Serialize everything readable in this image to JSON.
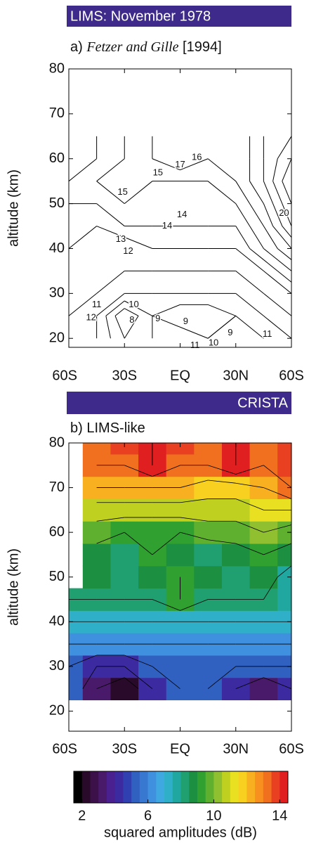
{
  "chart_data": [
    {
      "type": "contour",
      "header": "LIMS: November 1978",
      "panel_label": "a)",
      "citation_authors": "Fetzer and Gille",
      "citation_year": "[1994]",
      "ylabel": "altitude (km)",
      "x": [
        -60,
        -45,
        -30,
        -15,
        0,
        15,
        30,
        45,
        60
      ],
      "y": [
        20,
        25,
        30,
        35,
        40,
        45,
        50,
        55,
        60,
        65
      ],
      "z": [
        [
          12,
          11,
          9,
          10,
          11,
          10,
          9,
          10,
          11
        ],
        [
          12,
          11,
          8,
          10,
          9,
          9,
          10,
          11,
          12
        ],
        [
          12,
          12,
          11,
          11,
          11,
          11,
          11,
          12,
          13
        ],
        [
          12,
          12,
          12,
          12,
          12,
          12,
          12,
          13,
          15
        ],
        [
          13,
          12,
          12,
          13,
          13,
          13,
          13,
          15,
          17
        ],
        [
          13,
          13,
          14,
          14,
          14,
          14,
          14,
          16,
          19
        ],
        [
          14,
          14,
          15,
          14,
          14,
          14,
          15,
          17,
          20
        ],
        [
          14,
          15,
          15,
          15,
          15,
          15,
          16,
          18,
          21
        ],
        [
          13,
          14,
          15,
          16,
          17,
          16,
          16,
          18,
          20
        ],
        [
          13,
          14,
          15,
          16,
          16,
          16,
          16,
          18,
          19
        ]
      ],
      "levels": [
        8,
        9,
        10,
        11,
        12,
        13,
        14,
        15,
        16,
        17,
        18,
        19,
        20,
        21
      ],
      "line_color": "#000000",
      "contour_labels": [
        {
          "value": 16,
          "x": 9,
          "y": 60.3
        },
        {
          "value": 17,
          "x": 0,
          "y": 58.6
        },
        {
          "value": 15,
          "x": -12,
          "y": 56.8
        },
        {
          "value": 15,
          "x": -31,
          "y": 52.5
        },
        {
          "value": 14,
          "x": 1,
          "y": 47.5
        },
        {
          "value": 14,
          "x": -7,
          "y": 45
        },
        {
          "value": 20,
          "x": 56,
          "y": 47.8
        },
        {
          "value": 13,
          "x": -32,
          "y": 42
        },
        {
          "value": 12,
          "x": -28,
          "y": 39.4
        },
        {
          "value": 11,
          "x": -45,
          "y": 27.5
        },
        {
          "value": 12,
          "x": -48,
          "y": 24.6
        },
        {
          "value": 10,
          "x": -25,
          "y": 27.5
        },
        {
          "value": 8,
          "x": -26,
          "y": 24
        },
        {
          "value": 9,
          "x": -12,
          "y": 24.3
        },
        {
          "value": 9,
          "x": 3,
          "y": 23.7
        },
        {
          "value": 9,
          "x": 27,
          "y": 21.2
        },
        {
          "value": 10,
          "x": 18,
          "y": 18.9
        },
        {
          "value": 11,
          "x": 8,
          "y": 18.4
        },
        {
          "value": 11,
          "x": 47,
          "y": 20.9
        }
      ],
      "xlim": [
        -60,
        60
      ],
      "ylim": [
        18,
        80
      ],
      "xticks": [
        {
          "value": -60,
          "label": "60S"
        },
        {
          "value": -30,
          "label": "30S"
        },
        {
          "value": 0,
          "label": "EQ"
        },
        {
          "value": 30,
          "label": "30N"
        },
        {
          "value": 60,
          "label": "60S"
        }
      ],
      "yticks": [
        20,
        30,
        40,
        50,
        60,
        70,
        80
      ]
    },
    {
      "type": "filled_contour",
      "header": "CRISTA",
      "panel_label": "b)",
      "subtitle": "LIMS-like",
      "ylabel": "altitude (km)",
      "x": [
        -60,
        -45,
        -30,
        -15,
        0,
        15,
        30,
        45,
        60
      ],
      "y": [
        25,
        30,
        35,
        40,
        45,
        50,
        55,
        60,
        65,
        70,
        75,
        80
      ],
      "z": [
        [
          5,
          3,
          2,
          4,
          5,
          5,
          4,
          3,
          4
        ],
        [
          5,
          4,
          4,
          5,
          5,
          5,
          5,
          5,
          5
        ],
        [
          6,
          6,
          6,
          6,
          6,
          6,
          6,
          6,
          6
        ],
        [
          7,
          7,
          7,
          7,
          7,
          7,
          7,
          7,
          7
        ],
        [
          8,
          8,
          8,
          8,
          9,
          8,
          8,
          8,
          7.5
        ],
        [
          null,
          8.5,
          8,
          8.5,
          9,
          8.5,
          8,
          8.5,
          7.5
        ],
        [
          null,
          8.5,
          8,
          9,
          8.5,
          8,
          8.5,
          9,
          8.5
        ],
        [
          null,
          9.5,
          9,
          9,
          9,
          9.5,
          9.5,
          10,
          9.5
        ],
        [
          null,
          10.5,
          10.5,
          10.5,
          10.5,
          10.5,
          10.5,
          11,
          11
        ],
        [
          null,
          12,
          12,
          12,
          12,
          11.5,
          11.5,
          12,
          13
        ],
        [
          null,
          13,
          13,
          14,
          13,
          13,
          14,
          13,
          13.5
        ],
        [
          null,
          13,
          13.5,
          14,
          13.5,
          13,
          14,
          13,
          13.5
        ]
      ],
      "levels": [
        3,
        4,
        5,
        6,
        7,
        8,
        9,
        10,
        11,
        12,
        13,
        14
      ],
      "line_color": "#000000",
      "colormap": [
        "#000000",
        "#2a0a2a",
        "#3c1048",
        "#4a1a6a",
        "#4a2090",
        "#3c2aa0",
        "#3040b0",
        "#3060c0",
        "#3878d0",
        "#4090e0",
        "#40a8e0",
        "#30b0c8",
        "#20a8a0",
        "#20a070",
        "#1c9040",
        "#30a030",
        "#60b030",
        "#90c030",
        "#c0d020",
        "#e8e020",
        "#f8d020",
        "#f8b020",
        "#f89020",
        "#f07020",
        "#e84020",
        "#e02020"
      ],
      "clim": [
        1.5,
        14.5
      ],
      "colorbar_ticks": [
        2,
        6,
        10,
        14
      ],
      "colorbar_label": "squared amplitudes (dB)",
      "xlim": [
        -60,
        60
      ],
      "ylim": [
        15.5,
        80
      ],
      "xticks": [
        {
          "value": -60,
          "label": "60S"
        },
        {
          "value": -30,
          "label": "30S"
        },
        {
          "value": 0,
          "label": "EQ"
        },
        {
          "value": 30,
          "label": "30N"
        },
        {
          "value": 60,
          "label": "60S"
        }
      ],
      "yticks": [
        20,
        30,
        40,
        50,
        60,
        70,
        80
      ]
    }
  ]
}
